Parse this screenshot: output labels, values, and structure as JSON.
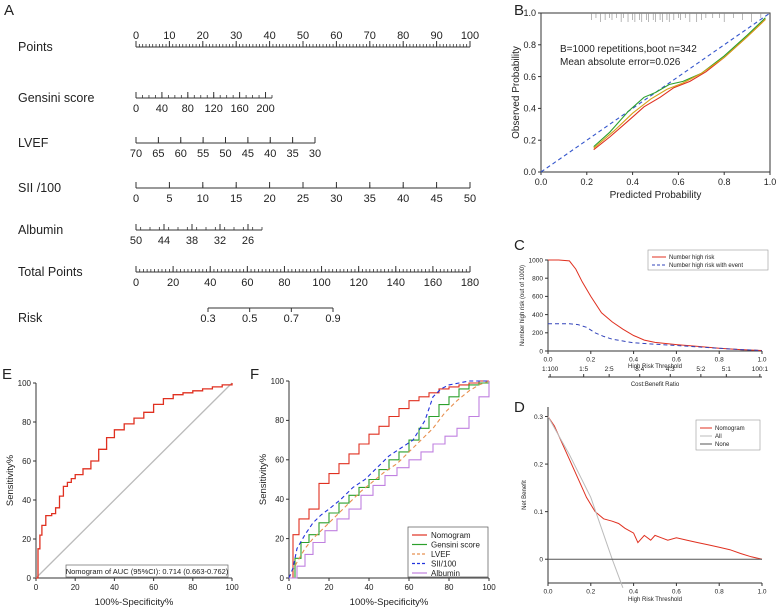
{
  "panel_letters": {
    "a": "A",
    "b": "B",
    "c": "C",
    "d": "D",
    "e": "E",
    "f": "F"
  },
  "chart_data": [
    {
      "id": "nomogram",
      "type": "nomogram",
      "rows": [
        {
          "label": "Points",
          "range": [
            0,
            100
          ],
          "ticks": [
            "0",
            "10",
            "20",
            "30",
            "40",
            "50",
            "60",
            "70",
            "80",
            "90",
            "100"
          ],
          "tick_values": [
            0,
            10,
            20,
            30,
            40,
            50,
            60,
            70,
            80,
            90,
            100
          ],
          "minor_step": 1
        },
        {
          "label": "Gensini  score",
          "range": [
            0,
            210
          ],
          "ticks": [
            "0",
            "40",
            "80",
            "120",
            "160",
            "200"
          ],
          "tick_values": [
            0,
            40,
            80,
            120,
            160,
            200
          ],
          "minor_step": 10
        },
        {
          "label": "LVEF",
          "range": [
            70,
            30
          ],
          "ticks": [
            "70",
            "65",
            "60",
            "55",
            "50",
            "45",
            "40",
            "35",
            "30"
          ],
          "tick_values": [
            70,
            65,
            60,
            55,
            50,
            45,
            40,
            35,
            30
          ],
          "minor_step": 5
        },
        {
          "label": "SII /100",
          "range": [
            0,
            50
          ],
          "ticks": [
            "0",
            "5",
            "10",
            "15",
            "20",
            "25",
            "30",
            "35",
            "40",
            "45",
            "50"
          ],
          "tick_values": [
            0,
            5,
            10,
            15,
            20,
            25,
            30,
            35,
            40,
            45,
            50
          ],
          "minor_step": 5
        },
        {
          "label": "Albumin",
          "range": [
            50,
            23
          ],
          "ticks": [
            "50",
            "44",
            "38",
            "32",
            "26"
          ],
          "tick_values": [
            50,
            44,
            38,
            32,
            26
          ],
          "minor_step": 2
        },
        {
          "label": "Total Points",
          "range": [
            0,
            180
          ],
          "ticks": [
            "0",
            "20",
            "40",
            "60",
            "80",
            "100",
            "120",
            "140",
            "160",
            "180"
          ],
          "tick_values": [
            0,
            20,
            40,
            60,
            80,
            100,
            120,
            140,
            160,
            180
          ],
          "minor_step": 2
        },
        {
          "label": "Risk",
          "range": [
            0.3,
            0.9
          ],
          "ticks": [
            "0.3",
            "0.5",
            "0.7",
            "0.9"
          ],
          "tick_values": [
            0.3,
            0.5,
            0.7,
            0.9
          ],
          "minor_step": 0
        }
      ]
    },
    {
      "id": "calibration",
      "type": "line",
      "xlabel": "Predicted Probability",
      "ylabel": "Observed  Probability",
      "xlim": [
        0,
        1
      ],
      "ylim": [
        0,
        1
      ],
      "xticks": [
        "0.0",
        "0.2",
        "0.4",
        "0.6",
        "0.8",
        "1.0"
      ],
      "yticks": [
        "0.0",
        "0.2",
        "0.4",
        "0.6",
        "0.8",
        "1.0"
      ],
      "annotation_1": "B=1000 repetitions,boot  n=342",
      "annotation_2": "Mean absolute error=0.026",
      "series": [
        {
          "name": "Ideal",
          "color": "#3355cc",
          "dash": true,
          "x": [
            0,
            1
          ],
          "y": [
            0,
            1
          ]
        },
        {
          "name": "Apparent",
          "color": "#e03020",
          "x": [
            0.23,
            0.3,
            0.38,
            0.45,
            0.52,
            0.58,
            0.65,
            0.72,
            0.8,
            0.9,
            0.98
          ],
          "y": [
            0.14,
            0.22,
            0.32,
            0.41,
            0.47,
            0.53,
            0.57,
            0.63,
            0.72,
            0.85,
            0.96
          ]
        },
        {
          "name": "Bias-corrected",
          "color": "#2ca02c",
          "x": [
            0.23,
            0.3,
            0.38,
            0.45,
            0.5,
            0.56,
            0.62,
            0.7,
            0.8,
            0.9,
            0.98
          ],
          "y": [
            0.16,
            0.25,
            0.38,
            0.47,
            0.5,
            0.55,
            0.57,
            0.62,
            0.73,
            0.86,
            0.97
          ]
        },
        {
          "name": "Mid",
          "color": "#d4a017",
          "x": [
            0.23,
            0.32,
            0.4,
            0.48,
            0.55,
            0.62,
            0.7,
            0.8,
            0.9,
            0.98
          ],
          "y": [
            0.15,
            0.26,
            0.37,
            0.46,
            0.52,
            0.56,
            0.62,
            0.72,
            0.85,
            0.96
          ]
        }
      ],
      "rug": [
        0.22,
        0.24,
        0.26,
        0.28,
        0.3,
        0.31,
        0.33,
        0.35,
        0.36,
        0.38,
        0.4,
        0.41,
        0.43,
        0.44,
        0.46,
        0.47,
        0.49,
        0.5,
        0.52,
        0.53,
        0.55,
        0.56,
        0.58,
        0.6,
        0.61,
        0.63,
        0.65,
        0.68,
        0.7,
        0.72,
        0.75,
        0.78,
        0.8,
        0.84,
        0.88,
        0.92,
        0.96
      ]
    },
    {
      "id": "clinical_impact",
      "type": "line",
      "xlabel": "High Risk Threshold",
      "ylabel": "Number high risk (out of 1000)",
      "cost_label": "Cost:Benefit Ratio",
      "xlim": [
        0,
        1
      ],
      "ylim": [
        0,
        1000
      ],
      "xticks": [
        "0.0",
        "0.2",
        "0.4",
        "0.6",
        "0.8",
        "1.0"
      ],
      "yticks": [
        "0",
        "200",
        "400",
        "600",
        "800",
        "1000"
      ],
      "cost_ticks": [
        "1:100",
        "1:5",
        "2:5",
        "3:4",
        "4:3",
        "5:2",
        "5:1",
        "100:1"
      ],
      "cost_tick_values": [
        0.01,
        0.1667,
        0.2857,
        0.4286,
        0.5714,
        0.7143,
        0.8333,
        0.99
      ],
      "legend": [
        "Number high risk",
        "Number high risk with event"
      ],
      "series": [
        {
          "name": "Number high risk",
          "color": "#e03020",
          "x": [
            0,
            0.05,
            0.1,
            0.13,
            0.16,
            0.2,
            0.25,
            0.3,
            0.35,
            0.4,
            0.45,
            0.5,
            0.6,
            0.7,
            0.8,
            0.9,
            1.0
          ],
          "y": [
            1000,
            1000,
            990,
            900,
            760,
            600,
            420,
            320,
            240,
            170,
            120,
            95,
            70,
            50,
            30,
            15,
            5
          ]
        },
        {
          "name": "Number high risk with event",
          "color": "#3344bb",
          "dash": true,
          "x": [
            0,
            0.1,
            0.14,
            0.18,
            0.22,
            0.26,
            0.3,
            0.35,
            0.4,
            0.5,
            0.6,
            0.7,
            0.8,
            0.9,
            1.0
          ],
          "y": [
            300,
            300,
            290,
            260,
            200,
            160,
            130,
            110,
            90,
            75,
            60,
            45,
            30,
            15,
            5
          ]
        }
      ]
    },
    {
      "id": "dca",
      "type": "line",
      "xlabel": "High Risk Threshold",
      "ylabel": "Net Benefit",
      "xlim": [
        0,
        1
      ],
      "ylim": [
        -0.05,
        0.32
      ],
      "xticks": [
        "0.0",
        "0.2",
        "0.4",
        "0.6",
        "0.8",
        "1.0"
      ],
      "yticks": [
        "0",
        "0.1",
        "0.2",
        "0.3"
      ],
      "ytick_values": [
        0,
        0.1,
        0.2,
        0.3
      ],
      "legend": [
        "Nomogram",
        "All",
        "None"
      ],
      "series": [
        {
          "name": "Nomogram",
          "color": "#e03020",
          "x": [
            0,
            0.03,
            0.06,
            0.1,
            0.14,
            0.18,
            0.22,
            0.26,
            0.3,
            0.33,
            0.36,
            0.4,
            0.42,
            0.45,
            0.48,
            0.5,
            0.53,
            0.56,
            0.6,
            0.65,
            0.7,
            0.75,
            0.8,
            0.85,
            0.9,
            0.95,
            1.0
          ],
          "y": [
            0.3,
            0.28,
            0.25,
            0.21,
            0.17,
            0.13,
            0.1,
            0.085,
            0.08,
            0.075,
            0.065,
            0.055,
            0.035,
            0.05,
            0.04,
            0.05,
            0.045,
            0.04,
            0.045,
            0.04,
            0.035,
            0.03,
            0.025,
            0.02,
            0.012,
            0.005,
            0.0
          ]
        },
        {
          "name": "All",
          "color": "#bbbbbb",
          "x": [
            0,
            0.1,
            0.2,
            0.3,
            0.35
          ],
          "y": [
            0.3,
            0.22,
            0.13,
            0.0,
            -0.06
          ]
        },
        {
          "name": "None",
          "color": "#555555",
          "x": [
            0,
            1
          ],
          "y": [
            0,
            0
          ]
        }
      ]
    },
    {
      "id": "roc_nomogram",
      "type": "line",
      "xlabel": "100%-Specificity%",
      "ylabel": "Sensitivity%",
      "xlim": [
        0,
        100
      ],
      "ylim": [
        0,
        100
      ],
      "xticks": [
        "0",
        "20",
        "40",
        "60",
        "80",
        "100"
      ],
      "yticks": [
        "0",
        "20",
        "40",
        "60",
        "80",
        "100"
      ],
      "legend_text": "Nomogram of AUC (95%CI): 0.714 (0.663-0.762)",
      "series": [
        {
          "name": "Reference",
          "color": "#bbbbbb",
          "x": [
            0,
            100
          ],
          "y": [
            0,
            100
          ]
        },
        {
          "name": "Nomogram",
          "color": "#e03020",
          "step": true,
          "x": [
            0,
            1,
            2,
            3,
            5,
            8,
            10,
            12,
            14,
            16,
            18,
            20,
            24,
            28,
            32,
            36,
            40,
            45,
            50,
            55,
            60,
            65,
            70,
            75,
            80,
            85,
            90,
            95,
            100
          ],
          "y": [
            0,
            15,
            22,
            27,
            32,
            33,
            36,
            42,
            47,
            49,
            51,
            53,
            56,
            60,
            66,
            72,
            76,
            79,
            82,
            85,
            89,
            92,
            94,
            95,
            96,
            97,
            98,
            99,
            100
          ]
        }
      ]
    },
    {
      "id": "roc_compare",
      "type": "line",
      "xlabel": "100%-Specificity%",
      "ylabel": "Sensitivity%",
      "xlim": [
        0,
        100
      ],
      "ylim": [
        0,
        100
      ],
      "xticks": [
        "0",
        "20",
        "40",
        "60",
        "80",
        "100"
      ],
      "yticks": [
        "0",
        "20",
        "40",
        "60",
        "80",
        "100"
      ],
      "legend": [
        "Nomogram",
        "Gensini score",
        "LVEF",
        "SII/100",
        "Albumin"
      ],
      "series": [
        {
          "name": "Nomogram",
          "color": "#e03020",
          "step": true,
          "x": [
            0,
            2,
            5,
            10,
            15,
            20,
            25,
            30,
            35,
            40,
            45,
            50,
            55,
            60,
            65,
            70,
            75,
            80,
            85,
            90,
            95,
            100
          ],
          "y": [
            0,
            22,
            30,
            35,
            48,
            53,
            58,
            63,
            68,
            73,
            77,
            82,
            86,
            90,
            92,
            94,
            96,
            97,
            98,
            99,
            100,
            100
          ]
        },
        {
          "name": "Gensini score",
          "color": "#2ca02c",
          "step": true,
          "x": [
            0,
            3,
            6,
            10,
            15,
            20,
            25,
            30,
            35,
            40,
            45,
            50,
            55,
            60,
            65,
            70,
            75,
            80,
            85,
            90,
            95,
            100
          ],
          "y": [
            0,
            10,
            18,
            22,
            28,
            33,
            38,
            42,
            46,
            50,
            55,
            60,
            64,
            70,
            76,
            82,
            88,
            92,
            96,
            98,
            99,
            100
          ]
        },
        {
          "name": "LVEF",
          "color": "#e89050",
          "dash": true,
          "x": [
            0,
            4,
            8,
            12,
            18,
            24,
            30,
            36,
            42,
            48,
            54,
            60,
            66,
            72,
            78,
            84,
            90,
            95,
            100
          ],
          "y": [
            0,
            8,
            15,
            20,
            26,
            32,
            38,
            44,
            49,
            54,
            58,
            64,
            70,
            76,
            84,
            90,
            95,
            98,
            100
          ]
        },
        {
          "name": "SII/100",
          "color": "#2233dd",
          "dash": true,
          "x": [
            0,
            2,
            4,
            8,
            12,
            16,
            20,
            26,
            32,
            38,
            44,
            50,
            56,
            62,
            68,
            72,
            76,
            80,
            85,
            90,
            95,
            100
          ],
          "y": [
            0,
            5,
            15,
            22,
            28,
            32,
            35,
            40,
            46,
            50,
            56,
            62,
            66,
            70,
            80,
            92,
            96,
            98,
            99,
            100,
            100,
            100
          ]
        },
        {
          "name": "Albumin",
          "color": "#c080e0",
          "step": true,
          "x": [
            0,
            4,
            8,
            12,
            18,
            24,
            30,
            36,
            42,
            48,
            54,
            60,
            66,
            72,
            78,
            84,
            90,
            95,
            100
          ],
          "y": [
            0,
            6,
            12,
            18,
            24,
            30,
            35,
            42,
            47,
            52,
            56,
            60,
            64,
            68,
            72,
            76,
            82,
            92,
            100
          ]
        }
      ]
    }
  ]
}
